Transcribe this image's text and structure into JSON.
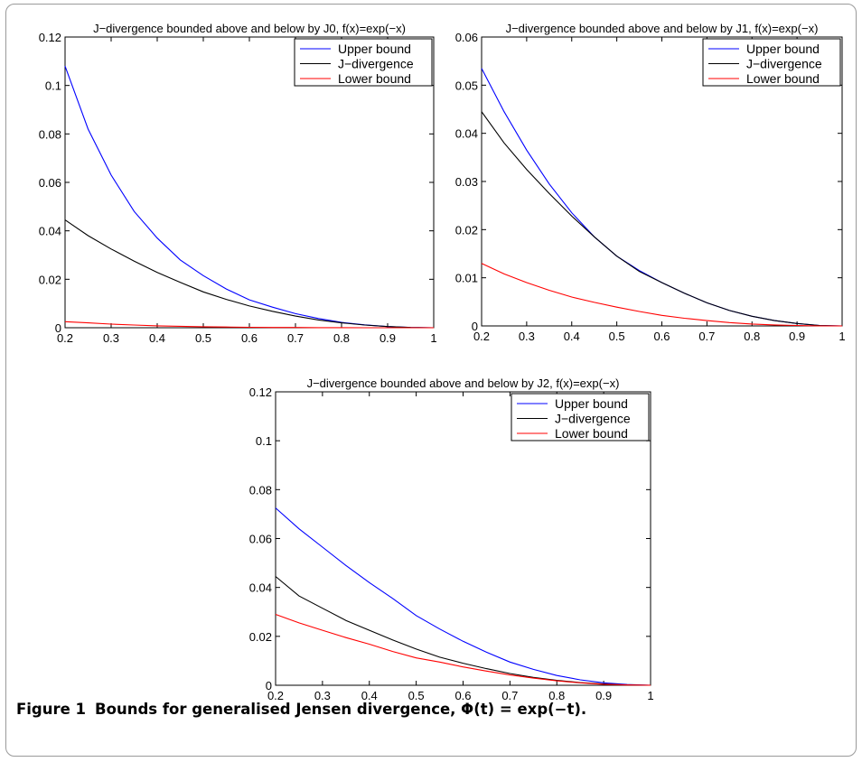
{
  "caption": {
    "label": "Figure 1",
    "text": "Bounds for generalised Jensen divergence, Φ(t) = exp(−t)."
  },
  "chart_data": [
    {
      "type": "line",
      "title": "J−divergence bounded above and below by J0, f(x)=exp(−x)",
      "xlabel": "",
      "ylabel": "",
      "xlim": [
        0.2,
        1
      ],
      "ylim": [
        0,
        0.12
      ],
      "xticks": [
        "0.2",
        "0.3",
        "0.4",
        "0.5",
        "0.6",
        "0.7",
        "0.8",
        "0.9",
        "1"
      ],
      "yticks": [
        "0",
        "0.02",
        "0.04",
        "0.06",
        "0.08",
        "0.1",
        "0.12"
      ],
      "legend_position": "top-right",
      "grid": false,
      "x": [
        0.2,
        0.25,
        0.3,
        0.35,
        0.4,
        0.45,
        0.5,
        0.55,
        0.6,
        0.65,
        0.7,
        0.75,
        0.8,
        0.85,
        0.9,
        0.95,
        1.0
      ],
      "series": [
        {
          "name": "Upper bound",
          "color": "#0000ff",
          "values": [
            0.108,
            0.082,
            0.063,
            0.048,
            0.037,
            0.028,
            0.0215,
            0.016,
            0.0115,
            0.0085,
            0.0058,
            0.0038,
            0.0022,
            0.0012,
            0.0005,
            0.0001,
            0
          ]
        },
        {
          "name": "J−divergence",
          "color": "#000000",
          "values": [
            0.0445,
            0.038,
            0.0325,
            0.0275,
            0.0228,
            0.0187,
            0.0148,
            0.0117,
            0.009,
            0.0068,
            0.0048,
            0.0032,
            0.002,
            0.0011,
            0.0005,
            0.0001,
            0
          ]
        },
        {
          "name": "Lower bound",
          "color": "#ff0000",
          "values": [
            0.0025,
            0.002,
            0.0015,
            0.0011,
            0.0008,
            0.0006,
            0.0004,
            0.0003,
            0.0002,
            0.0001,
            0.0001,
            5e-05,
            3e-05,
            1e-05,
            0,
            0,
            0
          ]
        }
      ]
    },
    {
      "type": "line",
      "title": "J−divergence bounded above and below by J1, f(x)=exp(−x)",
      "xlabel": "",
      "ylabel": "",
      "xlim": [
        0.2,
        1
      ],
      "ylim": [
        0,
        0.06
      ],
      "xticks": [
        "0.2",
        "0.3",
        "0.4",
        "0.5",
        "0.6",
        "0.7",
        "0.8",
        "0.9",
        "1"
      ],
      "yticks": [
        "0",
        "0.01",
        "0.02",
        "0.03",
        "0.04",
        "0.05",
        "0.06"
      ],
      "legend_position": "top-right",
      "grid": false,
      "x": [
        0.2,
        0.25,
        0.3,
        0.35,
        0.4,
        0.45,
        0.5,
        0.55,
        0.6,
        0.65,
        0.7,
        0.75,
        0.8,
        0.85,
        0.9,
        0.95,
        1.0
      ],
      "series": [
        {
          "name": "Upper bound",
          "color": "#0000ff",
          "values": [
            0.0535,
            0.0445,
            0.0365,
            0.0295,
            0.0235,
            0.0185,
            0.0145,
            0.0115,
            0.009,
            0.0068,
            0.0048,
            0.0032,
            0.002,
            0.0011,
            0.0005,
            0.0001,
            0
          ]
        },
        {
          "name": "J−divergence",
          "color": "#000000",
          "values": [
            0.0445,
            0.038,
            0.0325,
            0.0275,
            0.0228,
            0.0185,
            0.0145,
            0.0113,
            0.009,
            0.0068,
            0.0048,
            0.0032,
            0.002,
            0.0011,
            0.0005,
            0.0001,
            0
          ]
        },
        {
          "name": "Lower bound",
          "color": "#ff0000",
          "values": [
            0.013,
            0.0108,
            0.009,
            0.0074,
            0.006,
            0.0049,
            0.0039,
            0.003,
            0.0022,
            0.0016,
            0.0011,
            0.0007,
            0.0004,
            0.0002,
            0.0001,
            0,
            0
          ]
        }
      ]
    },
    {
      "type": "line",
      "title": "J−divergence bounded above and below by J2, f(x)=exp(−x)",
      "xlabel": "",
      "ylabel": "",
      "xlim": [
        0.2,
        1
      ],
      "ylim": [
        0,
        0.12
      ],
      "xticks": [
        "0.2",
        "0.3",
        "0.4",
        "0.5",
        "0.6",
        "0.7",
        "0.8",
        "0.9",
        "1"
      ],
      "yticks": [
        "0",
        "0.02",
        "0.04",
        "0.06",
        "0.08",
        "0.1",
        "0.12"
      ],
      "legend_position": "top-right",
      "grid": false,
      "x": [
        0.2,
        0.25,
        0.3,
        0.35,
        0.4,
        0.45,
        0.5,
        0.55,
        0.6,
        0.65,
        0.7,
        0.75,
        0.8,
        0.85,
        0.9,
        0.95,
        1.0
      ],
      "series": [
        {
          "name": "Upper bound",
          "color": "#0000ff",
          "values": [
            0.0725,
            0.064,
            0.0565,
            0.049,
            0.042,
            0.0355,
            0.0285,
            0.023,
            0.018,
            0.0135,
            0.0095,
            0.0065,
            0.004,
            0.0022,
            0.001,
            0.0003,
            0
          ]
        },
        {
          "name": "J−divergence",
          "color": "#000000",
          "values": [
            0.0445,
            0.0365,
            0.0315,
            0.0265,
            0.0225,
            0.0185,
            0.0148,
            0.0115,
            0.009,
            0.0068,
            0.0048,
            0.0032,
            0.002,
            0.0011,
            0.0005,
            0.0001,
            0
          ]
        },
        {
          "name": "Lower bound",
          "color": "#ff0000",
          "values": [
            0.029,
            0.0255,
            0.0225,
            0.0195,
            0.0168,
            0.0138,
            0.0112,
            0.0095,
            0.0075,
            0.0058,
            0.0042,
            0.0029,
            0.0018,
            0.001,
            0.0004,
            0.0001,
            0
          ]
        }
      ]
    }
  ]
}
